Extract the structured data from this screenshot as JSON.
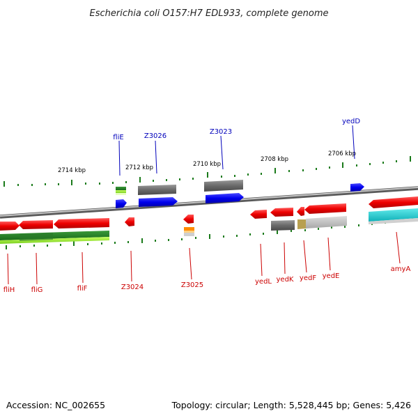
{
  "title": "Escherichia coli O157:H7 EDL933, complete genome",
  "footer": {
    "accession": "Accession: NC_002655",
    "summary": "Topology: circular; Length: 5,528,445 bp; Genes: 5,426"
  },
  "scale_labels": [
    "2714 kbp",
    "2712 kbp",
    "2710 kbp",
    "2708 kbp",
    "2706 kbp"
  ],
  "colors": {
    "top_label": "#0000bb",
    "bottom_label": "#cc0000",
    "forward_gene": "#0000ee",
    "reverse_gene": "#ee0000",
    "grey_gene": "#707070",
    "tick": "#1a7a1a",
    "backbone": "#8a8a8a"
  },
  "top_labels": [
    "fliE",
    "Z3026",
    "Z3023",
    "yedD"
  ],
  "bottom_labels": [
    "fliH",
    "fliG",
    "fliF",
    "Z3024",
    "Z3025",
    "yedL",
    "yedK",
    "yedF",
    "yedE",
    "amyA"
  ]
}
